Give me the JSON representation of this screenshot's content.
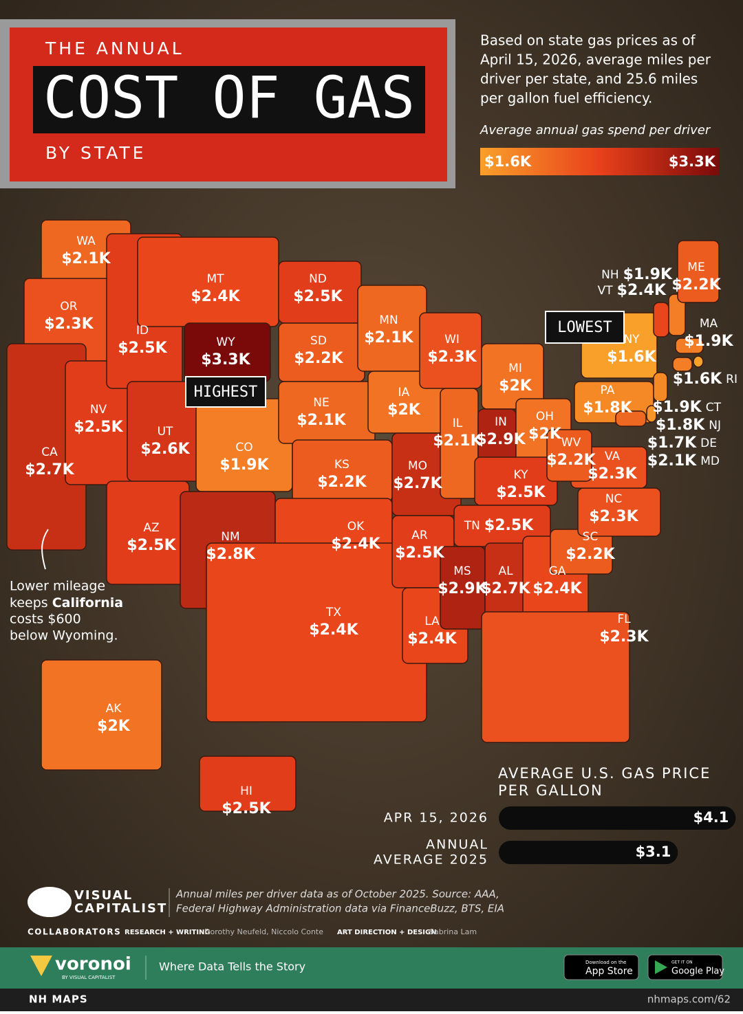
{
  "header": {
    "kicker": "THE ANNUAL",
    "title": "COST OF GAS",
    "subtitle": "BY STATE"
  },
  "description": [
    "Based on state gas prices as of",
    "April 15, 2026, average miles per",
    "driver per state, and 25.6 miles",
    "per gallon fuel efficiency."
  ],
  "legend": {
    "title": "Average annual gas spend per driver",
    "range": [
      {
        "value": 1600,
        "label": "$1.6K"
      },
      {
        "value": 3300,
        "label": "$3.3K"
      }
    ]
  },
  "callouts": {
    "highest": "HIGHEST",
    "lowest": "LOWEST"
  },
  "annotation": {
    "before": "Lower mileage",
    "keeps": "keeps ",
    "bold": "California",
    "line3": "costs $600",
    "line4": "below Wyoming."
  },
  "states": [
    {
      "abbr": "WA",
      "value": 2100,
      "label": "$2.1K"
    },
    {
      "abbr": "OR",
      "value": 2300,
      "label": "$2.3K"
    },
    {
      "abbr": "CA",
      "value": 2700,
      "label": "$2.7K"
    },
    {
      "abbr": "NV",
      "value": 2500,
      "label": "$2.5K"
    },
    {
      "abbr": "ID",
      "value": 2500,
      "label": "$2.5K"
    },
    {
      "abbr": "MT",
      "value": 2400,
      "label": "$2.4K"
    },
    {
      "abbr": "WY",
      "value": 3300,
      "label": "$3.3K"
    },
    {
      "abbr": "UT",
      "value": 2600,
      "label": "$2.6K"
    },
    {
      "abbr": "AZ",
      "value": 2500,
      "label": "$2.5K"
    },
    {
      "abbr": "CO",
      "value": 1900,
      "label": "$1.9K"
    },
    {
      "abbr": "NM",
      "value": 2800,
      "label": "$2.8K"
    },
    {
      "abbr": "ND",
      "value": 2500,
      "label": "$2.5K"
    },
    {
      "abbr": "SD",
      "value": 2200,
      "label": "$2.2K"
    },
    {
      "abbr": "NE",
      "value": 2100,
      "label": "$2.1K"
    },
    {
      "abbr": "KS",
      "value": 2200,
      "label": "$2.2K"
    },
    {
      "abbr": "OK",
      "value": 2400,
      "label": "$2.4K"
    },
    {
      "abbr": "TX",
      "value": 2400,
      "label": "$2.4K"
    },
    {
      "abbr": "MN",
      "value": 2100,
      "label": "$2.1K"
    },
    {
      "abbr": "IA",
      "value": 2000,
      "label": "$2K"
    },
    {
      "abbr": "MO",
      "value": 2700,
      "label": "$2.7K"
    },
    {
      "abbr": "AR",
      "value": 2500,
      "label": "$2.5K"
    },
    {
      "abbr": "LA",
      "value": 2400,
      "label": "$2.4K"
    },
    {
      "abbr": "WI",
      "value": 2300,
      "label": "$2.3K"
    },
    {
      "abbr": "IL",
      "value": 2100,
      "label": "$2.1K"
    },
    {
      "abbr": "MI",
      "value": 2000,
      "label": "$2K"
    },
    {
      "abbr": "IN",
      "value": 2900,
      "label": "$2.9K"
    },
    {
      "abbr": "OH",
      "value": 2000,
      "label": "$2K"
    },
    {
      "abbr": "KY",
      "value": 2500,
      "label": "$2.5K"
    },
    {
      "abbr": "TN",
      "value": 2500,
      "label": "$2.5K"
    },
    {
      "abbr": "MS",
      "value": 2900,
      "label": "$2.9K"
    },
    {
      "abbr": "AL",
      "value": 2700,
      "label": "$2.7K"
    },
    {
      "abbr": "GA",
      "value": 2400,
      "label": "$2.4K"
    },
    {
      "abbr": "FL",
      "value": 2300,
      "label": "$2.3K"
    },
    {
      "abbr": "SC",
      "value": 2200,
      "label": "$2.2K"
    },
    {
      "abbr": "NC",
      "value": 2300,
      "label": "$2.3K"
    },
    {
      "abbr": "VA",
      "value": 2300,
      "label": "$2.3K"
    },
    {
      "abbr": "WV",
      "value": 2200,
      "label": "$2.2K"
    },
    {
      "abbr": "PA",
      "value": 1800,
      "label": "$1.8K"
    },
    {
      "abbr": "NY",
      "value": 1600,
      "label": "$1.6K"
    },
    {
      "abbr": "AK",
      "value": 2000,
      "label": "$2K"
    },
    {
      "abbr": "HI",
      "value": 2500,
      "label": "$2.5K"
    },
    {
      "abbr": "NH",
      "value": 1900,
      "label": "$1.9K"
    },
    {
      "abbr": "VT",
      "value": 2400,
      "label": "$2.4K"
    },
    {
      "abbr": "ME",
      "value": 2200,
      "label": "$2.2K"
    },
    {
      "abbr": "MA",
      "value": 1900,
      "label": "$1.9K"
    },
    {
      "abbr": "RI",
      "value": 1600,
      "label": "$1.6K"
    },
    {
      "abbr": "CT",
      "value": 1900,
      "label": "$1.9K"
    },
    {
      "abbr": "NJ",
      "value": 1800,
      "label": "$1.8K"
    },
    {
      "abbr": "DE",
      "value": 1700,
      "label": "$1.7K"
    },
    {
      "abbr": "MD",
      "value": 2100,
      "label": "$2.1K"
    }
  ],
  "gas_price": {
    "title": [
      "AVERAGE U.S. GAS PRICE",
      "PER GALLON"
    ],
    "rows": [
      {
        "label": [
          "APR 15, 2026"
        ],
        "value": 4.1,
        "value_label": "$4.1"
      },
      {
        "label": [
          "ANNUAL",
          "AVERAGE 2025"
        ],
        "value": 3.1,
        "value_label": "$3.1"
      }
    ]
  },
  "source": [
    "Annual miles per driver data as of October 2025. Source: AAA,",
    "Federal Highway Administration data via FinanceBuzz, BTS, EIA"
  ],
  "brand": {
    "line1": "VISUAL",
    "line2": "CAPITALIST"
  },
  "credits": {
    "collaborators": "COLLABORATORS",
    "research_role": "RESEARCH + WRITING",
    "research_names": "Dorothy Neufeld, Niccolo Conte",
    "design_role": "ART DIRECTION + DESIGN",
    "design_names": "Sabrina Lam"
  },
  "footer": {
    "logo": "voronoi",
    "logo_sub": "BY VISUAL CAPITALIST",
    "tagline": "Where Data Tells the Story",
    "appstore_small": "Download on the",
    "appstore": "App Store",
    "play_small": "GET IT ON",
    "play": "Google Play"
  },
  "bottom": {
    "left": "NH MAPS",
    "right": "nhmaps.com/62"
  }
}
